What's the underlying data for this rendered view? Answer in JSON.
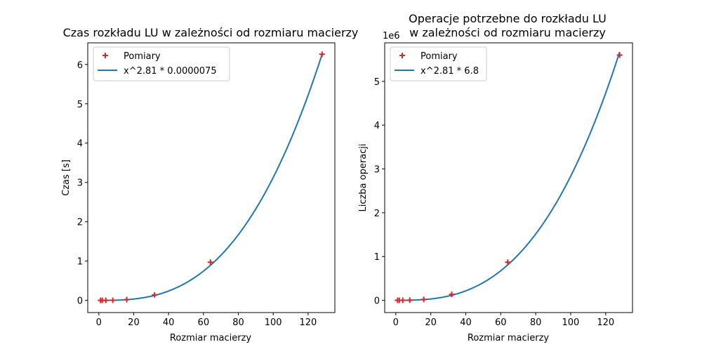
{
  "chart_data": [
    {
      "type": "scatter",
      "title": "Czas rozkładu LU w zależności od rozmiaru macierzy",
      "xlabel": "Rozmiar macierzy",
      "ylabel": "Czas [s]",
      "xlim": [
        -6.35,
        135.35
      ],
      "ylim": [
        -0.31,
        6.55
      ],
      "xticks": [
        0,
        20,
        40,
        60,
        80,
        100,
        120
      ],
      "yticks": [
        0,
        1,
        2,
        3,
        4,
        5,
        6
      ],
      "offset_text": "",
      "legend": {
        "placement": "upper-left"
      },
      "grid": false,
      "series": [
        {
          "name": "Pomiary",
          "kind": "scatter",
          "marker": "+",
          "color": "#d62728",
          "x": [
            1,
            2,
            4,
            8,
            16,
            32,
            64,
            128
          ],
          "y": [
            0.0,
            0.0001,
            0.0005,
            0.003,
            0.02,
            0.14,
            0.97,
            6.26
          ]
        },
        {
          "name": "x^2.81 * 0.0000075",
          "kind": "line",
          "color": "#1f77b4",
          "formula": {
            "exponent": 2.81,
            "coefficient": 7.5e-06
          },
          "x_range": [
            1,
            128
          ]
        }
      ]
    },
    {
      "type": "scatter",
      "title": "Operacje potrzebne do rozkładu LU\nw zależności od rozmiaru macierzy",
      "title_lines": [
        "Operacje potrzebne do rozkładu LU",
        "w zależności od rozmiaru macierzy"
      ],
      "xlabel": "Rozmiar macierzy",
      "ylabel": "Liczba operacji",
      "xlim": [
        -6.35,
        135.35
      ],
      "ylim": [
        -280000,
        5880000
      ],
      "xticks": [
        0,
        20,
        40,
        60,
        80,
        100,
        120
      ],
      "yticks": [
        0,
        1000000,
        2000000,
        3000000,
        4000000,
        5000000
      ],
      "ytick_labels": [
        "0",
        "1",
        "2",
        "3",
        "4",
        "5"
      ],
      "offset_text": "1e6",
      "legend": {
        "placement": "upper-left"
      },
      "grid": false,
      "series": [
        {
          "name": "Pomiary",
          "kind": "scatter",
          "marker": "+",
          "color": "#d62728",
          "x": [
            1,
            2,
            4,
            8,
            16,
            32,
            64,
            128
          ],
          "y": [
            1,
            55,
            390,
            2800,
            19500,
            135000,
            870000,
            5600000
          ]
        },
        {
          "name": "x^2.81 * 6.8",
          "kind": "line",
          "color": "#1f77b4",
          "formula": {
            "exponent": 2.81,
            "coefficient": 6.8
          },
          "x_range": [
            1,
            128
          ]
        }
      ]
    }
  ]
}
